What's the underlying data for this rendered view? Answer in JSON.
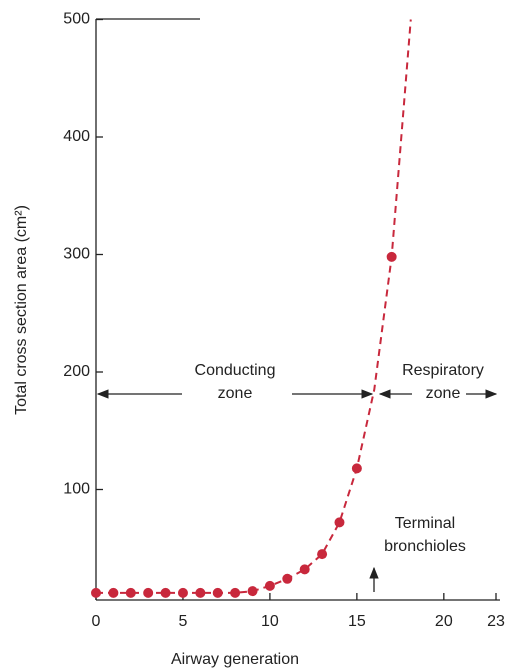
{
  "chart_data": {
    "type": "scatter",
    "x_label": "Airway generation",
    "y_label": "Total cross section area (cm²)",
    "x": [
      0,
      1,
      2,
      3,
      4,
      5,
      6,
      7,
      8,
      9,
      10,
      11,
      12,
      13,
      14,
      15,
      17
    ],
    "series": [
      {
        "color": "#c8283c",
        "values": [
          12,
          12,
          12,
          12,
          12,
          12,
          12,
          12,
          12,
          13.5,
          18,
          24,
          32,
          45,
          72,
          118,
          298
        ]
      }
    ],
    "curve": {
      "x": [
        0,
        8,
        9,
        10,
        11,
        12,
        13,
        14,
        15,
        16,
        17,
        18.1
      ],
      "values": [
        12,
        12,
        13.5,
        18,
        24,
        32,
        45,
        72,
        118,
        185,
        298,
        500
      ],
      "color": "#c8283c"
    },
    "xlim": [
      0,
      23
    ],
    "xticks": [
      0,
      5,
      10,
      15,
      20,
      23
    ],
    "ylim": [
      0,
      500
    ],
    "yticks": [
      100,
      200,
      300,
      400,
      500
    ],
    "annotations": [
      "Conducting",
      "zone",
      "Respiratory",
      "zone",
      "Terminal",
      "bronchioles"
    ]
  }
}
